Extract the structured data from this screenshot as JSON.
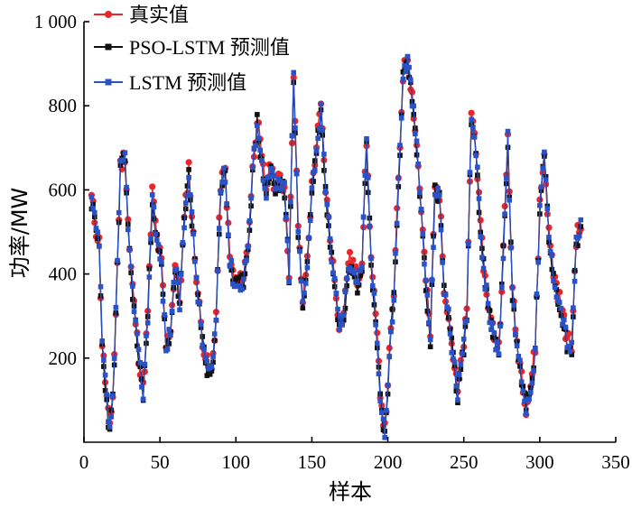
{
  "chart_data": {
    "type": "line",
    "title": "",
    "xlabel": "样本",
    "ylabel": "功率/MW",
    "xlim": [
      0,
      350
    ],
    "ylim": [
      0,
      1000
    ],
    "x_ticks": [
      0,
      50,
      100,
      150,
      200,
      250,
      300,
      350
    ],
    "x_tick_labels": [
      "0",
      "50",
      "100",
      "150",
      "200",
      "250",
      "300",
      "350"
    ],
    "y_ticks": [
      200,
      400,
      600,
      800,
      1000
    ],
    "y_tick_labels": [
      "200",
      "400",
      "600",
      "800",
      "1 000"
    ],
    "legend_position": "top-left",
    "anchors_x": [
      5,
      8,
      10,
      12,
      15,
      17,
      19,
      21,
      24,
      27,
      30,
      33,
      36,
      39,
      42,
      45,
      48,
      51,
      54,
      57,
      60,
      63,
      66,
      69,
      72,
      75,
      78,
      81,
      84,
      87,
      90,
      93,
      96,
      99,
      102,
      105,
      108,
      111,
      114,
      117,
      120,
      123,
      126,
      129,
      132,
      135,
      138,
      141,
      144,
      147,
      150,
      153,
      156,
      159,
      162,
      165,
      168,
      171,
      174,
      177,
      180,
      183,
      186,
      189,
      192,
      195,
      198,
      201,
      204,
      207,
      210,
      213,
      216,
      219,
      222,
      225,
      228,
      231,
      234,
      237,
      240,
      243,
      246,
      249,
      252,
      255,
      258,
      261,
      264,
      267,
      270,
      273,
      276,
      279,
      282,
      285,
      288,
      291,
      294,
      297,
      300,
      303,
      306,
      309,
      312,
      315,
      318,
      321,
      324,
      327
    ],
    "anchors_y": [
      575,
      500,
      470,
      230,
      100,
      20,
      110,
      300,
      650,
      680,
      450,
      320,
      200,
      120,
      300,
      590,
      480,
      420,
      220,
      270,
      420,
      330,
      520,
      650,
      480,
      350,
      240,
      180,
      160,
      300,
      610,
      640,
      430,
      380,
      370,
      390,
      470,
      640,
      770,
      660,
      600,
      650,
      600,
      620,
      600,
      400,
      880,
      500,
      330,
      430,
      600,
      700,
      790,
      600,
      480,
      380,
      280,
      300,
      430,
      420,
      380,
      430,
      710,
      430,
      290,
      120,
      20,
      200,
      350,
      620,
      870,
      910,
      820,
      700,
      550,
      380,
      250,
      600,
      580,
      370,
      300,
      200,
      110,
      200,
      300,
      780,
      700,
      500,
      380,
      300,
      250,
      220,
      450,
      720,
      350,
      230,
      160,
      80,
      130,
      220,
      560,
      680,
      490,
      400,
      350,
      300,
      240,
      220,
      480,
      510
    ],
    "series": [
      {
        "name": "真实值",
        "color": "#e8262b",
        "marker": "circle",
        "offset": 6,
        "seed": 11
      },
      {
        "name": "PSO-LSTM 预测值",
        "color": "#111111",
        "marker": "square",
        "offset": -4,
        "seed": 23
      },
      {
        "name": "LSTM 预测值",
        "color": "#2a52c7",
        "marker": "square",
        "offset": 0,
        "seed": 37
      }
    ]
  }
}
